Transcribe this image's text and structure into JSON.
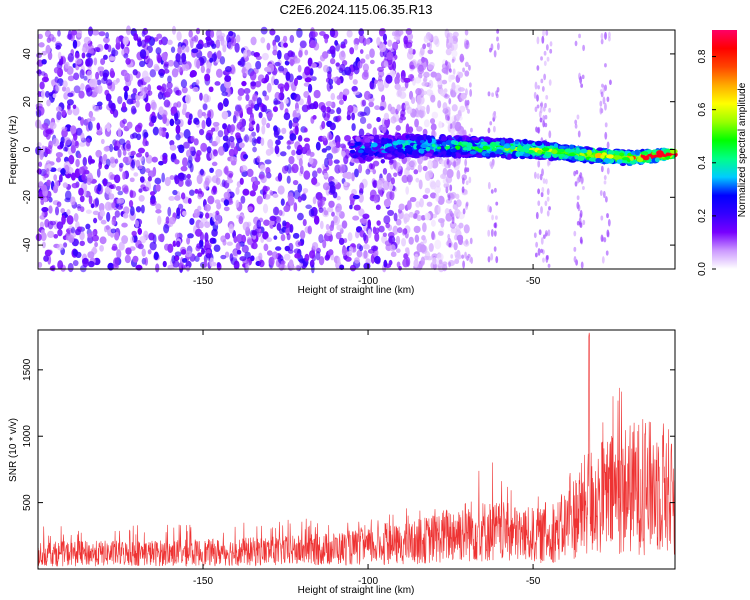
{
  "title": "C2E6.2024.115.06.35.R13",
  "chart_data": [
    {
      "type": "heatmap",
      "xlabel": "Height of straight line (km)",
      "ylabel": "Frequency (Hz)",
      "xlim": [
        -200,
        -7
      ],
      "ylim": [
        -50,
        50
      ],
      "xticks": [
        -150,
        -100,
        -50
      ],
      "yticks": [
        -40,
        -20,
        0,
        20,
        40
      ],
      "colorbar": {
        "label": "Normalized spectral amplitude",
        "range": [
          0.0,
          0.9
        ],
        "ticks": [
          0.0,
          0.2,
          0.4,
          0.6,
          0.8
        ],
        "colors": [
          "#ffffff",
          "#cc99ff",
          "#7700ff",
          "#3300ff",
          "#0000ff",
          "#00ccff",
          "#00ff88",
          "#00ff00",
          "#99ff00",
          "#ffff00",
          "#ffaa00",
          "#ff4400",
          "#ff0000",
          "#ff0066"
        ]
      },
      "features": {
        "noise_region_x": [
          -200,
          -80
        ],
        "noise_amplitude": 0.2,
        "ridge": [
          {
            "x": -105,
            "f": 0.0
          },
          {
            "x": -90,
            "f": 1.5
          },
          {
            "x": -75,
            "f": 1.5
          },
          {
            "x": -60,
            "f": 0.5
          },
          {
            "x": -50,
            "f": 0.0
          },
          {
            "x": -40,
            "f": -1.5
          },
          {
            "x": -30,
            "f": -2.5
          },
          {
            "x": -20,
            "f": -3.5
          },
          {
            "x": -10,
            "f": -2.0
          },
          {
            "x": -7,
            "f": -1.5
          }
        ],
        "ridge_peak_amplitude": 0.85
      }
    },
    {
      "type": "line",
      "xlabel": "Height of straight line (km)",
      "ylabel": "SNR (10 * v/v)",
      "xlim": [
        -200,
        -7
      ],
      "ylim": [
        0,
        1800
      ],
      "xticks": [
        -150,
        -100,
        -50
      ],
      "yticks": [
        500,
        1000,
        1500
      ],
      "color": "#ee3333",
      "envelope": {
        "x": [
          -200,
          -150,
          -120,
          -100,
          -90,
          -80,
          -75,
          -70,
          -60,
          -55,
          -50,
          -45,
          -40,
          -35,
          -33,
          -30,
          -25,
          -20,
          -15,
          -10,
          -7
        ],
        "max": [
          320,
          350,
          380,
          380,
          450,
          500,
          680,
          850,
          820,
          700,
          650,
          480,
          700,
          1200,
          1780,
          1100,
          1450,
          1400,
          1300,
          1150,
          900
        ],
        "mean": [
          130,
          140,
          160,
          190,
          210,
          260,
          300,
          330,
          320,
          300,
          290,
          280,
          380,
          520,
          580,
          600,
          650,
          700,
          700,
          720,
          600
        ]
      }
    }
  ]
}
